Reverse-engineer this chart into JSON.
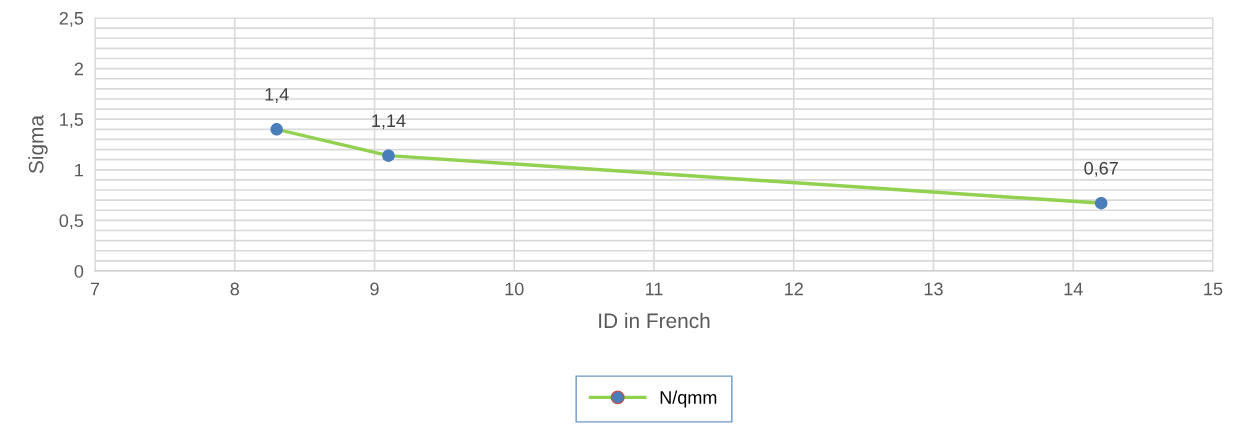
{
  "chart_data": {
    "type": "line",
    "xlabel": "ID in French",
    "ylabel": "Sigma",
    "x": [
      8.3,
      9.1,
      14.2
    ],
    "series": [
      {
        "name": "N/qmm",
        "color": "#92d050",
        "colors": [
          "#4a7ebb",
          "#4a7ebb",
          "#4a7ebb"
        ],
        "values": [
          1.4,
          1.14,
          0.67
        ],
        "value_labels": [
          "1,4",
          "1,14",
          "0,67"
        ]
      }
    ],
    "xlim": [
      7,
      15
    ],
    "xticks": [
      7,
      8,
      9,
      10,
      11,
      12,
      13,
      14,
      15
    ],
    "ylim": [
      0,
      2.5
    ],
    "yticks": [
      0,
      {
        "value": 0.1,
        "label": null
      },
      {
        "value": 0.2,
        "label": null
      },
      {
        "value": 0.3,
        "label": null
      },
      {
        "value": 0.4,
        "label": null
      },
      {
        "value": 0.5,
        "label": "0,5"
      },
      {
        "value": 0.6,
        "label": null
      },
      {
        "value": 0.7,
        "label": null
      },
      {
        "value": 0.8,
        "label": null
      },
      {
        "value": 0.9,
        "label": null
      },
      1,
      {
        "value": 1.1,
        "label": null
      },
      {
        "value": 1.2,
        "label": null
      },
      {
        "value": 1.3,
        "label": null
      },
      {
        "value": 1.4,
        "label": null
      },
      {
        "value": 1.5,
        "label": "1,5"
      },
      {
        "value": 1.6,
        "label": null
      },
      {
        "value": 1.7,
        "label": null
      },
      {
        "value": 1.8,
        "label": null
      },
      {
        "value": 1.9,
        "label": null
      },
      2,
      {
        "value": 2.1,
        "label": null
      },
      {
        "value": 2.2,
        "label": null
      },
      {
        "value": 2.3,
        "label": null
      },
      {
        "value": 2.4,
        "label": null
      },
      {
        "value": 2.5,
        "label": "2,5"
      }
    ],
    "grid": true,
    "legend": "bottom",
    "marker": "circle",
    "line_style": "solid"
  }
}
